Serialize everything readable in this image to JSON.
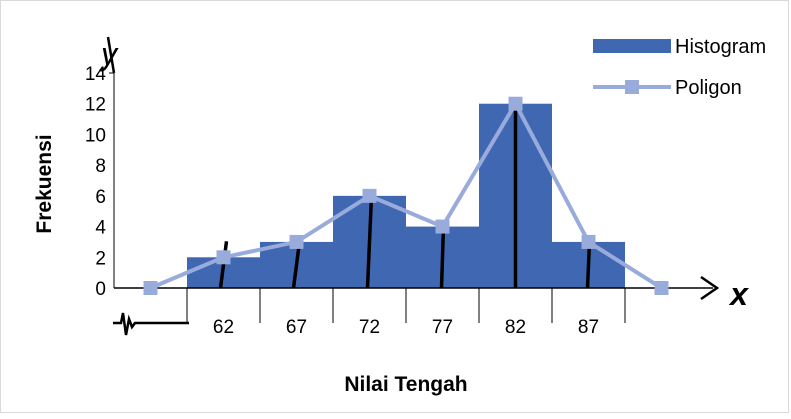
{
  "chart_data": {
    "type": "bar",
    "categories": [
      "62",
      "67",
      "72",
      "77",
      "82",
      "87"
    ],
    "series": [
      {
        "name": "Histogram",
        "type": "bar",
        "values": [
          2,
          3,
          6,
          4,
          12,
          3
        ]
      },
      {
        "name": "Poligon",
        "type": "line",
        "x": [
          57,
          62,
          67,
          72,
          77,
          82,
          87,
          92
        ],
        "values": [
          0,
          2,
          3,
          6,
          4,
          12,
          3,
          0
        ]
      }
    ],
    "xlabel": "Nilai Tengah",
    "ylabel": "Frekuensi",
    "x_axis_symbol": "x",
    "y_axis_symbol": "y",
    "ylim": [
      0,
      14
    ],
    "yticks": [
      0,
      2,
      4,
      6,
      8,
      10,
      12,
      14
    ],
    "grid": false,
    "legend_position": "top-right",
    "colors": {
      "histogram": "#4068b2",
      "poligon": "#99abdb",
      "axis": "#000000",
      "frame": "#d9d9d9"
    }
  }
}
